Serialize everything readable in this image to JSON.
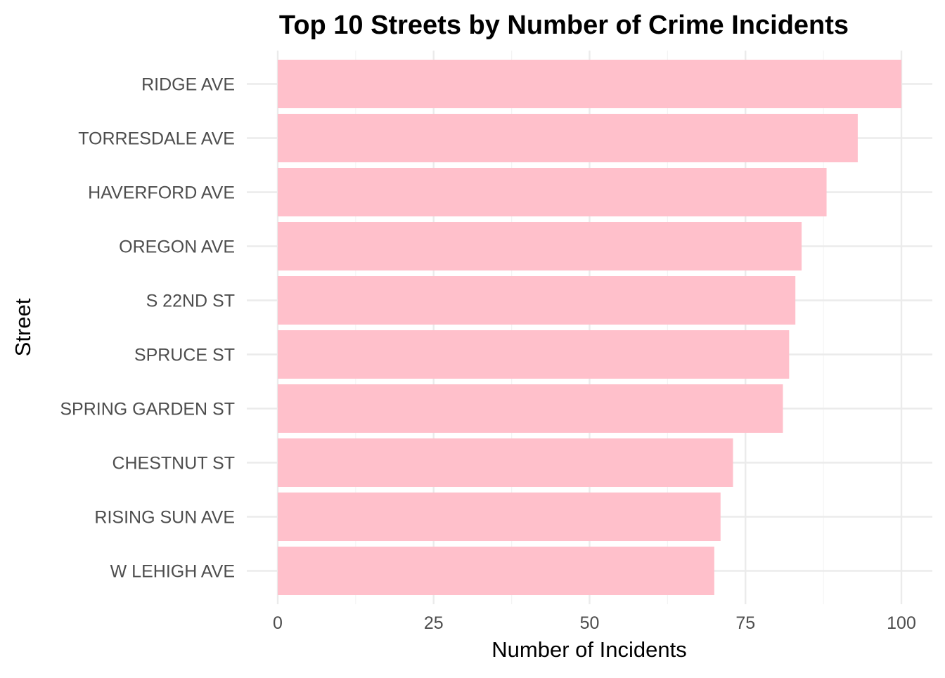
{
  "chart_data": {
    "type": "bar",
    "orientation": "horizontal",
    "title": "Top 10 Streets by Number of Crime Incidents",
    "xlabel": "Number of Incidents",
    "ylabel": "Street",
    "categories": [
      "RIDGE  AVE",
      "TORRESDALE  AVE",
      "HAVERFORD  AVE",
      "OREGON  AVE",
      "S  22ND  ST",
      "SPRUCE  ST",
      "SPRING GARDEN  ST",
      "CHESTNUT  ST",
      "RISING SUN  AVE",
      "W  LEHIGH  AVE"
    ],
    "values": [
      100,
      93,
      88,
      84,
      83,
      82,
      81,
      73,
      71,
      70
    ],
    "xticks": [
      0,
      25,
      50,
      75,
      100
    ],
    "xlim": [
      0,
      100
    ],
    "bar_color": "#ffc0cb",
    "grid": true,
    "legend": "none"
  }
}
